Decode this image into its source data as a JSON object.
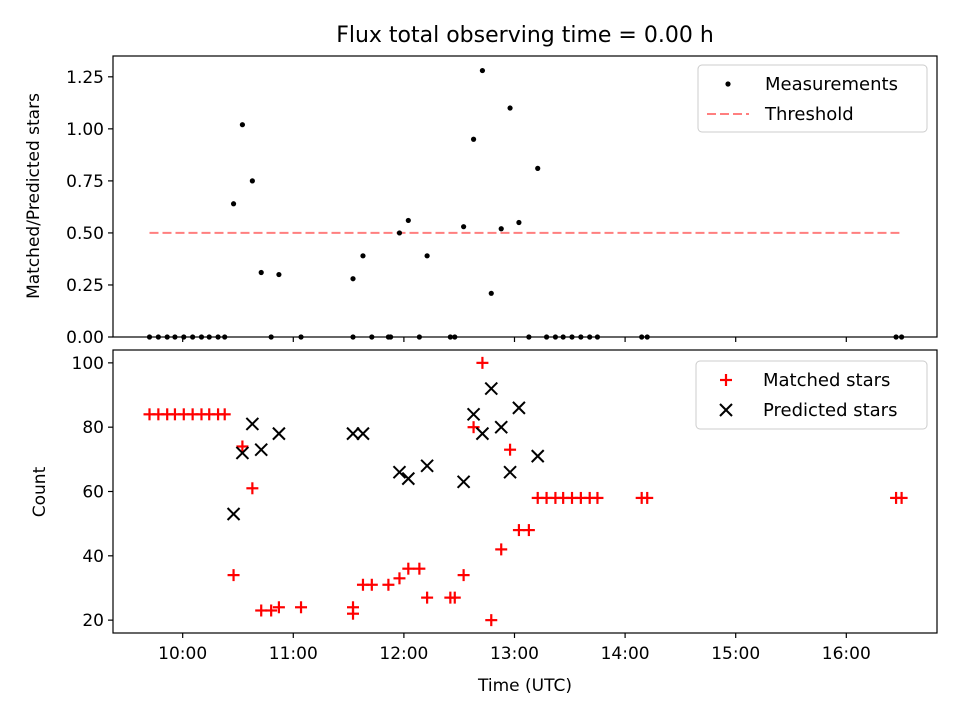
{
  "title": "Flux total observing time = 0.00 h",
  "chart_data": [
    {
      "type": "scatter",
      "panel": "top",
      "title": "Flux total observing time = 0.00 h",
      "xlabel": "",
      "ylabel": "Matched/Predicted stars",
      "x_unit": "hours UTC",
      "xlim": [
        9.37,
        16.82
      ],
      "ylim": [
        0.0,
        1.35
      ],
      "yticks": [
        0.0,
        0.25,
        0.5,
        0.75,
        1.0,
        1.25
      ],
      "ytick_labels": [
        "0.00",
        "0.25",
        "0.50",
        "0.75",
        "1.00",
        "1.25"
      ],
      "legend": {
        "position": "top-right",
        "entries": [
          {
            "label": "Measurements",
            "marker": "dot",
            "color": "#000000"
          },
          {
            "label": "Threshold",
            "marker": "dashed-line",
            "color": "#ff7f7f"
          }
        ]
      },
      "threshold": {
        "value": 0.5,
        "x_start": 9.7,
        "x_end": 16.48,
        "color": "#ff7f7f"
      },
      "series": [
        {
          "name": "Measurements",
          "color": "#000000",
          "points": [
            [
              9.7,
              0
            ],
            [
              9.78,
              0
            ],
            [
              9.86,
              0
            ],
            [
              9.93,
              0
            ],
            [
              10.01,
              0
            ],
            [
              10.09,
              0
            ],
            [
              10.17,
              0
            ],
            [
              10.24,
              0
            ],
            [
              10.32,
              0
            ],
            [
              10.38,
              0
            ],
            [
              10.46,
              0.64
            ],
            [
              10.54,
              1.02
            ],
            [
              10.63,
              0.75
            ],
            [
              10.71,
              0.31
            ],
            [
              10.8,
              0
            ],
            [
              10.87,
              0.3
            ],
            [
              11.07,
              0
            ],
            [
              11.54,
              0.28
            ],
            [
              11.54,
              0
            ],
            [
              11.63,
              0.39
            ],
            [
              11.71,
              0
            ],
            [
              11.86,
              0
            ],
            [
              11.88,
              0
            ],
            [
              11.96,
              0.5
            ],
            [
              12.04,
              0.56
            ],
            [
              12.14,
              0
            ],
            [
              12.21,
              0.39
            ],
            [
              12.42,
              0
            ],
            [
              12.46,
              0
            ],
            [
              12.54,
              0.53
            ],
            [
              12.63,
              0.95
            ],
            [
              12.71,
              1.28
            ],
            [
              12.79,
              0.21
            ],
            [
              12.88,
              0.52
            ],
            [
              12.96,
              1.1
            ],
            [
              13.04,
              0.55
            ],
            [
              13.13,
              0
            ],
            [
              13.21,
              0.81
            ],
            [
              13.29,
              0
            ],
            [
              13.37,
              0
            ],
            [
              13.44,
              0
            ],
            [
              13.52,
              0
            ],
            [
              13.6,
              0
            ],
            [
              13.68,
              0
            ],
            [
              13.75,
              0
            ],
            [
              14.15,
              0
            ],
            [
              14.2,
              0
            ],
            [
              16.45,
              0
            ],
            [
              16.5,
              0
            ]
          ]
        }
      ]
    },
    {
      "type": "scatter",
      "panel": "bottom",
      "title": "",
      "xlabel": "Time (UTC)",
      "ylabel": "Count",
      "x_unit": "hours UTC",
      "xlim": [
        9.37,
        16.82
      ],
      "ylim": [
        16,
        104
      ],
      "yticks": [
        20,
        40,
        60,
        80,
        100
      ],
      "ytick_labels": [
        "20",
        "40",
        "60",
        "80",
        "100"
      ],
      "xticks": [
        10,
        11,
        12,
        13,
        14,
        15,
        16
      ],
      "xtick_labels": [
        "10:00",
        "11:00",
        "12:00",
        "13:00",
        "14:00",
        "15:00",
        "16:00"
      ],
      "legend": {
        "position": "top-right",
        "entries": [
          {
            "label": "Matched stars",
            "marker": "plus",
            "color": "#ff0000"
          },
          {
            "label": "Predicted stars",
            "marker": "x",
            "color": "#000000"
          }
        ]
      },
      "series": [
        {
          "name": "Matched stars",
          "marker": "plus",
          "color": "#ff0000",
          "points": [
            [
              9.7,
              84
            ],
            [
              9.78,
              84
            ],
            [
              9.86,
              84
            ],
            [
              9.93,
              84
            ],
            [
              10.01,
              84
            ],
            [
              10.09,
              84
            ],
            [
              10.17,
              84
            ],
            [
              10.24,
              84
            ],
            [
              10.32,
              84
            ],
            [
              10.38,
              84
            ],
            [
              10.46,
              34
            ],
            [
              10.54,
              74
            ],
            [
              10.63,
              61
            ],
            [
              10.71,
              23
            ],
            [
              10.8,
              23
            ],
            [
              10.87,
              24
            ],
            [
              11.07,
              24
            ],
            [
              11.54,
              24
            ],
            [
              11.54,
              22
            ],
            [
              11.63,
              31
            ],
            [
              11.71,
              31
            ],
            [
              11.86,
              31
            ],
            [
              11.96,
              33
            ],
            [
              12.04,
              36
            ],
            [
              12.14,
              36
            ],
            [
              12.21,
              27
            ],
            [
              12.42,
              27
            ],
            [
              12.46,
              27
            ],
            [
              12.54,
              34
            ],
            [
              12.63,
              80
            ],
            [
              12.71,
              100
            ],
            [
              12.79,
              20
            ],
            [
              12.88,
              42
            ],
            [
              12.96,
              73
            ],
            [
              13.04,
              48
            ],
            [
              13.13,
              48
            ],
            [
              13.21,
              58
            ],
            [
              13.29,
              58
            ],
            [
              13.37,
              58
            ],
            [
              13.44,
              58
            ],
            [
              13.52,
              58
            ],
            [
              13.6,
              58
            ],
            [
              13.68,
              58
            ],
            [
              13.75,
              58
            ],
            [
              14.15,
              58
            ],
            [
              14.2,
              58
            ],
            [
              16.45,
              58
            ],
            [
              16.5,
              58
            ]
          ]
        },
        {
          "name": "Predicted stars",
          "marker": "x",
          "color": "#000000",
          "points": [
            [
              10.46,
              53
            ],
            [
              10.54,
              72
            ],
            [
              10.63,
              81
            ],
            [
              10.71,
              73
            ],
            [
              10.87,
              78
            ],
            [
              11.54,
              78
            ],
            [
              11.63,
              78
            ],
            [
              11.96,
              66
            ],
            [
              12.04,
              64
            ],
            [
              12.21,
              68
            ],
            [
              12.54,
              63
            ],
            [
              12.63,
              84
            ],
            [
              12.71,
              78
            ],
            [
              12.79,
              92
            ],
            [
              12.88,
              80
            ],
            [
              12.96,
              66
            ],
            [
              13.04,
              86
            ],
            [
              13.21,
              71
            ]
          ]
        }
      ]
    }
  ]
}
